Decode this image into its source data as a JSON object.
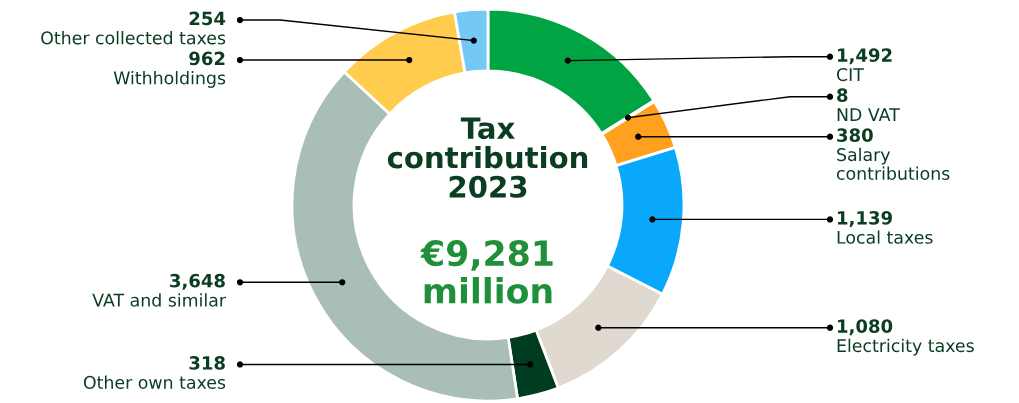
{
  "chart_data": {
    "type": "donut",
    "title": "Tax contribution 2023",
    "subtitle": "€9,281 million",
    "categories": [
      "CIT",
      "ND VAT",
      "Salary contributions",
      "Local taxes",
      "Electricity taxes",
      "Other own taxes",
      "VAT and similar",
      "Withholdings",
      "Other collected taxes"
    ],
    "values": [
      1492,
      8,
      380,
      1139,
      1080,
      318,
      3648,
      962,
      254
    ],
    "value_labels": [
      "1,492",
      "8",
      "380",
      "1,139",
      "1,080",
      "318",
      "3,648",
      "962",
      "254"
    ],
    "colors": [
      "#00a443",
      "#0b4a2c",
      "#ffa11f",
      "#0aa8fa",
      "#e0d9d0",
      "#003d20",
      "#a9bfb6",
      "#ffcc4d",
      "#73c8f5"
    ],
    "legend": false
  }
}
